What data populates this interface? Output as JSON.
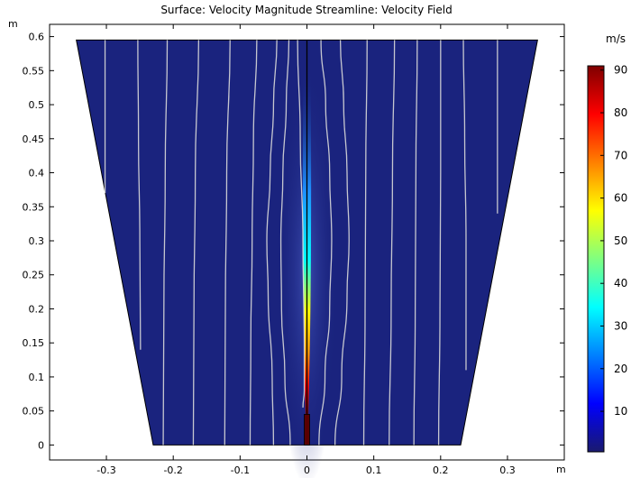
{
  "chart_data": {
    "type": "heatmap",
    "title": "Surface: Velocity Magnitude Streamline: Velocity Field",
    "x_unit": "m",
    "y_unit": "m",
    "xlim": [
      -0.385,
      0.385
    ],
    "ylim": [
      -0.022,
      0.618
    ],
    "x_ticks": [
      "-0.3",
      "-0.2",
      "-0.1",
      "0",
      "0.1",
      "0.2",
      "0.3"
    ],
    "y_ticks": [
      "0",
      "0.05",
      "0.1",
      "0.15",
      "0.2",
      "0.25",
      "0.3",
      "0.35",
      "0.4",
      "0.45",
      "0.5",
      "0.55",
      "0.6"
    ],
    "domain_polygon": [
      [
        -0.23,
        0.0
      ],
      [
        0.23,
        0.0
      ],
      [
        0.345,
        0.595
      ],
      [
        -0.345,
        0.595
      ]
    ],
    "nozzle": {
      "x_min": -0.004,
      "x_max": 0.004,
      "y_min": 0.0,
      "y_max": 0.045
    },
    "centerline_x": 0.0,
    "jet": {
      "peak_velocity": 90,
      "tip_y": 0.045
    },
    "colorbar": {
      "unit": "m/s",
      "ticks": [
        "90",
        "80",
        "70",
        "60",
        "50",
        "40",
        "30",
        "20",
        "10"
      ],
      "max": 91,
      "min": 0.5,
      "colors": [
        "#7f0000",
        "#ff0000",
        "#ff8000",
        "#ffff00",
        "#80ff80",
        "#00ffff",
        "#0080ff",
        "#0000ff",
        "#1a1a6e"
      ]
    },
    "background_color": "#1a237e",
    "streamline_color": "#d9d9d9",
    "streamlines": [
      [
        [
          -0.302,
          0.37
        ],
        [
          -0.302,
          0.595
        ]
      ],
      [
        [
          -0.249,
          0.14
        ],
        [
          -0.25,
          0.3
        ],
        [
          -0.252,
          0.45
        ],
        [
          -0.253,
          0.595
        ]
      ],
      [
        [
          -0.215,
          0.0
        ],
        [
          -0.214,
          0.2
        ],
        [
          -0.212,
          0.4
        ],
        [
          -0.209,
          0.595
        ]
      ],
      [
        [
          -0.17,
          0.0
        ],
        [
          -0.169,
          0.2
        ],
        [
          -0.167,
          0.4
        ],
        [
          -0.162,
          0.595
        ]
      ],
      [
        [
          -0.123,
          0.0
        ],
        [
          -0.122,
          0.2
        ],
        [
          -0.12,
          0.4
        ],
        [
          -0.115,
          0.595
        ]
      ],
      [
        [
          -0.085,
          0.0
        ],
        [
          -0.084,
          0.15
        ],
        [
          -0.082,
          0.3
        ],
        [
          -0.08,
          0.45
        ],
        [
          -0.075,
          0.595
        ]
      ],
      [
        [
          -0.05,
          0.0
        ],
        [
          -0.052,
          0.1
        ],
        [
          -0.058,
          0.22
        ],
        [
          -0.06,
          0.3
        ],
        [
          -0.055,
          0.4
        ],
        [
          -0.05,
          0.5
        ],
        [
          -0.045,
          0.595
        ]
      ],
      [
        [
          -0.025,
          0.0
        ],
        [
          -0.033,
          0.1
        ],
        [
          -0.038,
          0.2
        ],
        [
          -0.039,
          0.3
        ],
        [
          -0.036,
          0.4
        ],
        [
          -0.031,
          0.5
        ],
        [
          -0.027,
          0.595
        ]
      ],
      [
        [
          -0.006,
          0.055
        ],
        [
          -0.004,
          0.08
        ],
        [
          -0.004,
          0.15
        ],
        [
          -0.006,
          0.3
        ],
        [
          -0.01,
          0.45
        ],
        [
          -0.014,
          0.595
        ]
      ],
      [
        [
          0.018,
          0.0
        ],
        [
          0.027,
          0.1
        ],
        [
          0.034,
          0.2
        ],
        [
          0.037,
          0.3
        ],
        [
          0.034,
          0.4
        ],
        [
          0.028,
          0.5
        ],
        [
          0.021,
          0.595
        ]
      ],
      [
        [
          0.042,
          0.0
        ],
        [
          0.052,
          0.1
        ],
        [
          0.06,
          0.22
        ],
        [
          0.063,
          0.3
        ],
        [
          0.06,
          0.4
        ],
        [
          0.055,
          0.5
        ],
        [
          0.05,
          0.595
        ]
      ],
      [
        [
          0.085,
          0.0
        ],
        [
          0.087,
          0.2
        ],
        [
          0.088,
          0.4
        ],
        [
          0.09,
          0.595
        ]
      ],
      [
        [
          0.123,
          0.0
        ],
        [
          0.126,
          0.2
        ],
        [
          0.128,
          0.4
        ],
        [
          0.131,
          0.595
        ]
      ],
      [
        [
          0.16,
          0.0
        ],
        [
          0.162,
          0.2
        ],
        [
          0.163,
          0.4
        ],
        [
          0.165,
          0.595
        ]
      ],
      [
        [
          0.197,
          0.0
        ],
        [
          0.199,
          0.2
        ],
        [
          0.2,
          0.4
        ],
        [
          0.2,
          0.595
        ]
      ],
      [
        [
          0.238,
          0.11
        ],
        [
          0.238,
          0.3
        ],
        [
          0.236,
          0.45
        ],
        [
          0.234,
          0.595
        ]
      ],
      [
        [
          0.285,
          0.34
        ],
        [
          0.285,
          0.595
        ]
      ]
    ]
  }
}
